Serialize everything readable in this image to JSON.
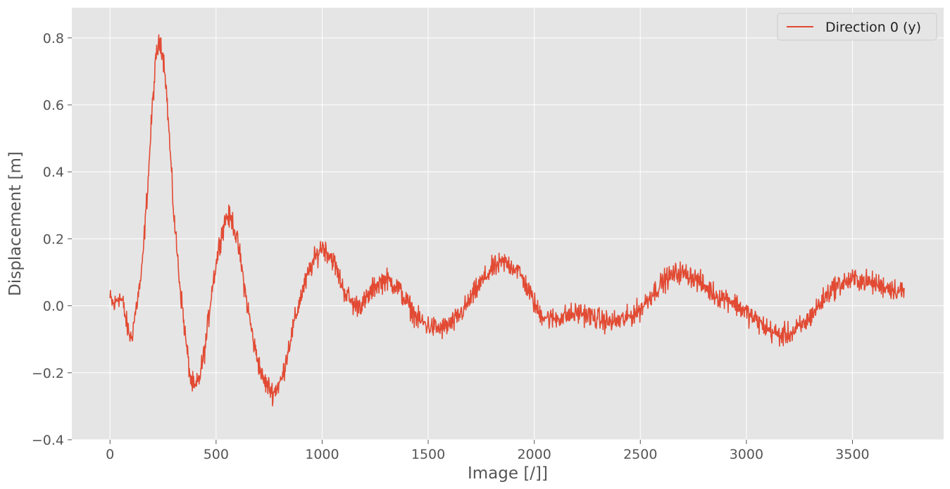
{
  "chart_data": {
    "type": "line",
    "xlabel": "Image [/]]",
    "ylabel": "Displacement [m]",
    "xlim": [
      -180,
      3930
    ],
    "ylim": [
      -0.4,
      0.89
    ],
    "grid": true,
    "legend": {
      "placement": "top-right"
    },
    "x_ticks": [
      0,
      500,
      1000,
      1500,
      2000,
      2500,
      3000,
      3500
    ],
    "y_ticks": [
      -0.4,
      -0.2,
      0.0,
      0.2,
      0.4,
      0.6,
      0.8
    ],
    "y_tick_labels": [
      "−0.4",
      "−0.2",
      "0.0",
      "0.2",
      "0.4",
      "0.6",
      "0.8"
    ],
    "colors": {
      "background": "#e5e5e5",
      "grid": "#ffffff",
      "line": "#e24a33"
    },
    "series": [
      {
        "name": "Direction 0 (y)",
        "color": "#e24a33",
        "noise_amplitude": 0.035,
        "x_range": [
          0,
          3745
        ],
        "points": [
          [
            0,
            0.02
          ],
          [
            20,
            0.0
          ],
          [
            40,
            0.03
          ],
          [
            60,
            0.01
          ],
          [
            80,
            -0.06
          ],
          [
            100,
            -0.1
          ],
          [
            120,
            -0.02
          ],
          [
            150,
            0.1
          ],
          [
            180,
            0.38
          ],
          [
            200,
            0.6
          ],
          [
            220,
            0.76
          ],
          [
            240,
            0.79
          ],
          [
            260,
            0.7
          ],
          [
            280,
            0.5
          ],
          [
            300,
            0.28
          ],
          [
            330,
            0.06
          ],
          [
            360,
            -0.12
          ],
          [
            380,
            -0.22
          ],
          [
            400,
            -0.25
          ],
          [
            420,
            -0.22
          ],
          [
            450,
            -0.12
          ],
          [
            480,
            0.05
          ],
          [
            520,
            0.2
          ],
          [
            550,
            0.27
          ],
          [
            580,
            0.25
          ],
          [
            610,
            0.16
          ],
          [
            640,
            0.03
          ],
          [
            680,
            -0.12
          ],
          [
            720,
            -0.22
          ],
          [
            770,
            -0.26
          ],
          [
            810,
            -0.22
          ],
          [
            850,
            -0.1
          ],
          [
            900,
            0.03
          ],
          [
            950,
            0.12
          ],
          [
            1000,
            0.18
          ],
          [
            1050,
            0.14
          ],
          [
            1100,
            0.05
          ],
          [
            1150,
            0.0
          ],
          [
            1200,
            0.01
          ],
          [
            1250,
            0.06
          ],
          [
            1300,
            0.08
          ],
          [
            1350,
            0.06
          ],
          [
            1400,
            0.01
          ],
          [
            1450,
            -0.04
          ],
          [
            1500,
            -0.06
          ],
          [
            1560,
            -0.07
          ],
          [
            1620,
            -0.05
          ],
          [
            1680,
            0.0
          ],
          [
            1750,
            0.07
          ],
          [
            1800,
            0.11
          ],
          [
            1860,
            0.13
          ],
          [
            1920,
            0.11
          ],
          [
            1970,
            0.05
          ],
          [
            2020,
            -0.02
          ],
          [
            2080,
            -0.04
          ],
          [
            2150,
            -0.03
          ],
          [
            2220,
            -0.02
          ],
          [
            2300,
            -0.04
          ],
          [
            2360,
            -0.05
          ],
          [
            2430,
            -0.04
          ],
          [
            2500,
            -0.01
          ],
          [
            2560,
            0.04
          ],
          [
            2620,
            0.08
          ],
          [
            2680,
            0.1
          ],
          [
            2740,
            0.09
          ],
          [
            2800,
            0.06
          ],
          [
            2860,
            0.03
          ],
          [
            2920,
            0.02
          ],
          [
            2980,
            -0.01
          ],
          [
            3040,
            -0.04
          ],
          [
            3100,
            -0.07
          ],
          [
            3160,
            -0.09
          ],
          [
            3220,
            -0.08
          ],
          [
            3280,
            -0.05
          ],
          [
            3340,
            0.0
          ],
          [
            3400,
            0.05
          ],
          [
            3460,
            0.07
          ],
          [
            3520,
            0.08
          ],
          [
            3580,
            0.07
          ],
          [
            3640,
            0.06
          ],
          [
            3700,
            0.05
          ],
          [
            3745,
            0.04
          ]
        ]
      }
    ]
  }
}
